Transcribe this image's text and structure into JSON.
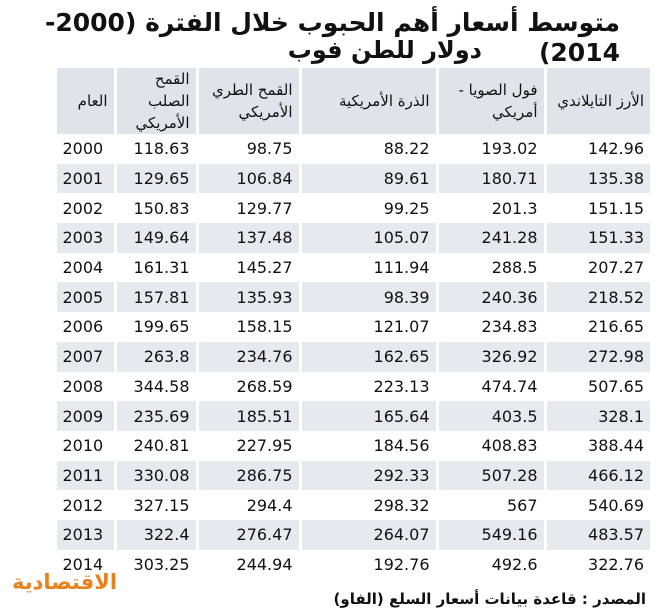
{
  "header": {
    "title": "متوسط أسعار أهم الحبوب خلال الفترة (2000-2014)",
    "subtitle": "دولار للطن فوب"
  },
  "table": {
    "columns": [
      "الأرز التايلاندي",
      "فول الصويا - أمريكي",
      "الذرة الأمريكية",
      "القمح الطري الأمريكي",
      "القمح الصلب الأمريكي",
      "العام"
    ],
    "rows": [
      [
        "142.96",
        "193.02",
        "88.22",
        "98.75",
        "118.63",
        "2000"
      ],
      [
        "135.38",
        "180.71",
        "89.61",
        "106.84",
        "129.65",
        "2001"
      ],
      [
        "151.15",
        "201.3",
        "99.25",
        "129.77",
        "150.83",
        "2002"
      ],
      [
        "151.33",
        "241.28",
        "105.07",
        "137.48",
        "149.64",
        "2003"
      ],
      [
        "207.27",
        "288.5",
        "111.94",
        "145.27",
        "161.31",
        "2004"
      ],
      [
        "218.52",
        "240.36",
        "98.39",
        "135.93",
        "157.81",
        "2005"
      ],
      [
        "216.65",
        "234.83",
        "121.07",
        "158.15",
        "199.65",
        "2006"
      ],
      [
        "272.98",
        "326.92",
        "162.65",
        "234.76",
        "263.8",
        "2007"
      ],
      [
        "507.65",
        "474.74",
        "223.13",
        "268.59",
        "344.58",
        "2008"
      ],
      [
        "328.1",
        "403.5",
        "165.64",
        "185.51",
        "235.69",
        "2009"
      ],
      [
        "388.44",
        "408.83",
        "184.56",
        "227.95",
        "240.81",
        "2010"
      ],
      [
        "466.12",
        "507.28",
        "292.33",
        "286.75",
        "330.08",
        "2011"
      ],
      [
        "540.69",
        "567",
        "298.32",
        "294.4",
        "327.15",
        "2012"
      ],
      [
        "483.57",
        "549.16",
        "264.07",
        "276.47",
        "322.4",
        "2013"
      ],
      [
        "322.76",
        "492.6",
        "192.76",
        "244.94",
        "303.25",
        "2014"
      ]
    ]
  },
  "footer": {
    "source": "المصدر : قاعدة بيانات أسعار السلع (الفاو)",
    "logo": "الاقتصادية"
  }
}
